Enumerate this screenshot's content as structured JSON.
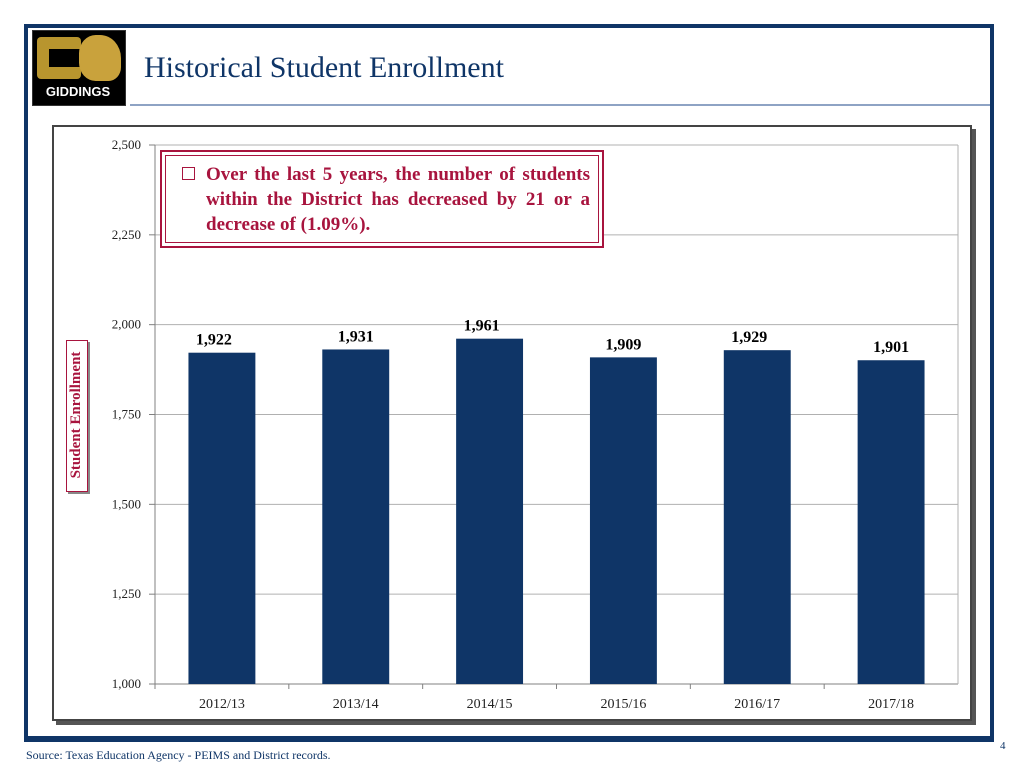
{
  "header": {
    "title": "Historical Student Enrollment",
    "logo_text": "GIDDINGS"
  },
  "callout": {
    "text": "Over the last 5 years, the number of students within the District has decreased by 21 or a decrease of  (1.09%)."
  },
  "chart_data": {
    "type": "bar",
    "categories": [
      "2012/13",
      "2013/14",
      "2014/15",
      "2015/16",
      "2016/17",
      "2017/18"
    ],
    "values": [
      1922,
      1931,
      1961,
      1909,
      1929,
      1901
    ],
    "value_labels": [
      "1,922",
      "1,931",
      "1,961",
      "1,909",
      "1,929",
      "1,901"
    ],
    "ylabel": "Student Enrollment",
    "ylim": [
      1000,
      2500
    ],
    "yticks": [
      1000,
      1250,
      1500,
      1750,
      2000,
      2250,
      2500
    ],
    "ytick_labels": [
      "1,000",
      "1,250",
      "1,500",
      "1,750",
      "2,000",
      "2,250",
      "2,500"
    ],
    "bar_color": "#0f3567",
    "grid": true
  },
  "footer": {
    "source": "Source: Texas Education Agency - PEIMS and District records.",
    "page_number": "4"
  },
  "colors": {
    "navy": "#0f3567",
    "accent": "#a8143e"
  }
}
